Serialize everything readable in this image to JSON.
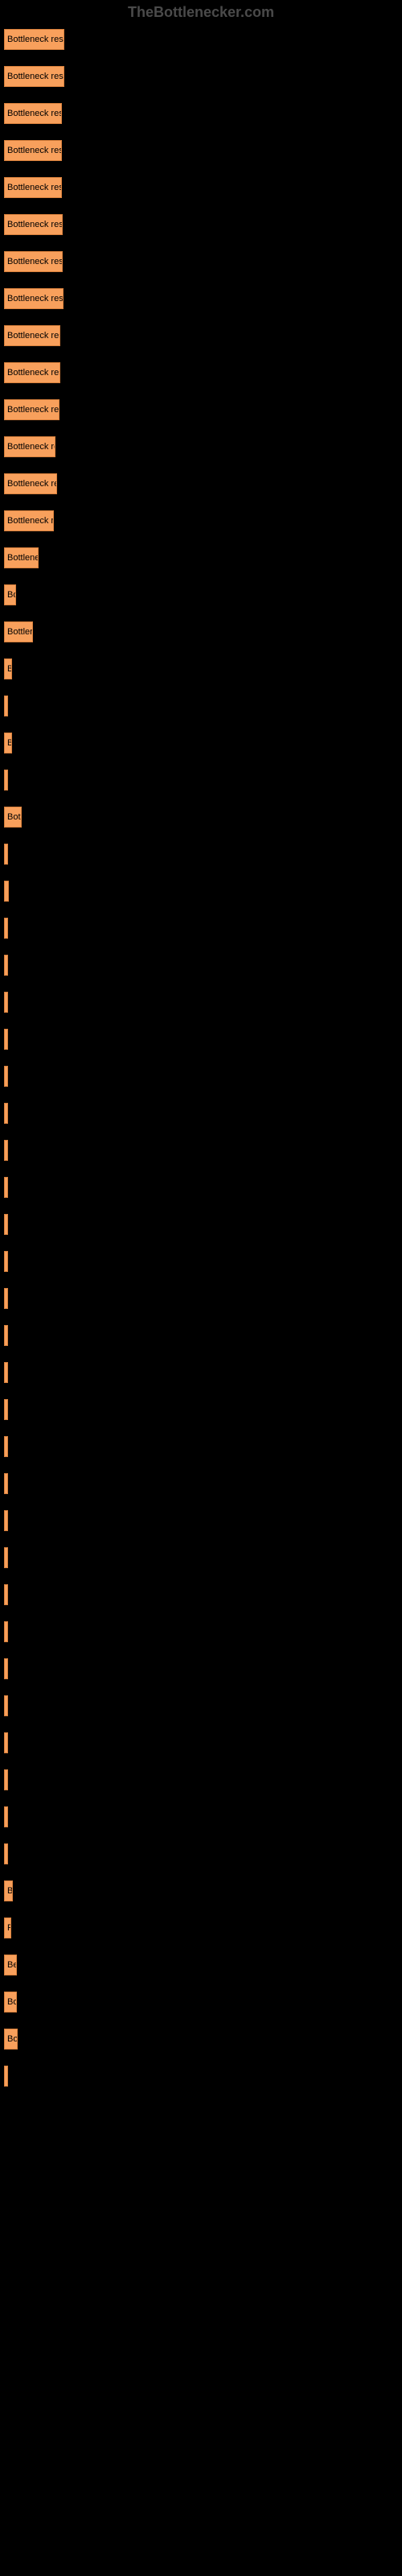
{
  "watermark": "TheBottlenecker.com",
  "chart": {
    "type": "bar",
    "orientation": "horizontal",
    "bar_color": "#f8a05c",
    "bar_border_color": "#d8803c",
    "background_color": "#000000",
    "text_color": "#000000",
    "watermark_color": "#4a4a4a",
    "bars": [
      {
        "label": "Bottleneck result",
        "width": 75
      },
      {
        "label": "Bottleneck result",
        "width": 75
      },
      {
        "label": "Bottleneck resu",
        "width": 72
      },
      {
        "label": "Bottleneck resu",
        "width": 72
      },
      {
        "label": "Bottleneck resu",
        "width": 72
      },
      {
        "label": "Bottleneck resu",
        "width": 73
      },
      {
        "label": "Bottleneck resu",
        "width": 73
      },
      {
        "label": "Bottleneck resu",
        "width": 74
      },
      {
        "label": "Bottleneck res",
        "width": 70
      },
      {
        "label": "Bottleneck res",
        "width": 70
      },
      {
        "label": "Bottleneck res",
        "width": 69
      },
      {
        "label": "Bottleneck re",
        "width": 64
      },
      {
        "label": "Bottleneck re",
        "width": 66
      },
      {
        "label": "Bottleneck r",
        "width": 62
      },
      {
        "label": "Bottlene",
        "width": 43
      },
      {
        "label": "Bo",
        "width": 15
      },
      {
        "label": "Bottler",
        "width": 36
      },
      {
        "label": "B",
        "width": 10
      },
      {
        "label": "",
        "width": 2
      },
      {
        "label": "B",
        "width": 10
      },
      {
        "label": "",
        "width": 2
      },
      {
        "label": "Bot",
        "width": 22
      },
      {
        "label": "",
        "width": 2
      },
      {
        "label": "",
        "width": 6
      },
      {
        "label": "",
        "width": 2
      },
      {
        "label": "",
        "width": 2
      },
      {
        "label": "",
        "width": 2
      },
      {
        "label": "",
        "width": 2
      },
      {
        "label": "",
        "width": 2
      },
      {
        "label": "",
        "width": 2
      },
      {
        "label": "",
        "width": 2
      },
      {
        "label": "",
        "width": 2
      },
      {
        "label": "",
        "width": 2
      },
      {
        "label": "",
        "width": 2
      },
      {
        "label": "",
        "width": 2
      },
      {
        "label": "",
        "width": 2
      },
      {
        "label": "",
        "width": 2
      },
      {
        "label": "",
        "width": 2
      },
      {
        "label": "",
        "width": 2
      },
      {
        "label": "",
        "width": 2
      },
      {
        "label": "",
        "width": 2
      },
      {
        "label": "",
        "width": 2
      },
      {
        "label": "",
        "width": 2
      },
      {
        "label": "",
        "width": 2
      },
      {
        "label": "",
        "width": 2
      },
      {
        "label": "",
        "width": 2
      },
      {
        "label": "",
        "width": 2
      },
      {
        "label": "",
        "width": 2
      },
      {
        "label": "",
        "width": 2
      },
      {
        "label": "",
        "width": 2
      },
      {
        "label": "B",
        "width": 11
      },
      {
        "label": "F",
        "width": 9
      },
      {
        "label": "Be",
        "width": 16
      },
      {
        "label": "Bo",
        "width": 16
      },
      {
        "label": "Bo",
        "width": 17
      },
      {
        "label": "",
        "width": 5
      }
    ]
  }
}
